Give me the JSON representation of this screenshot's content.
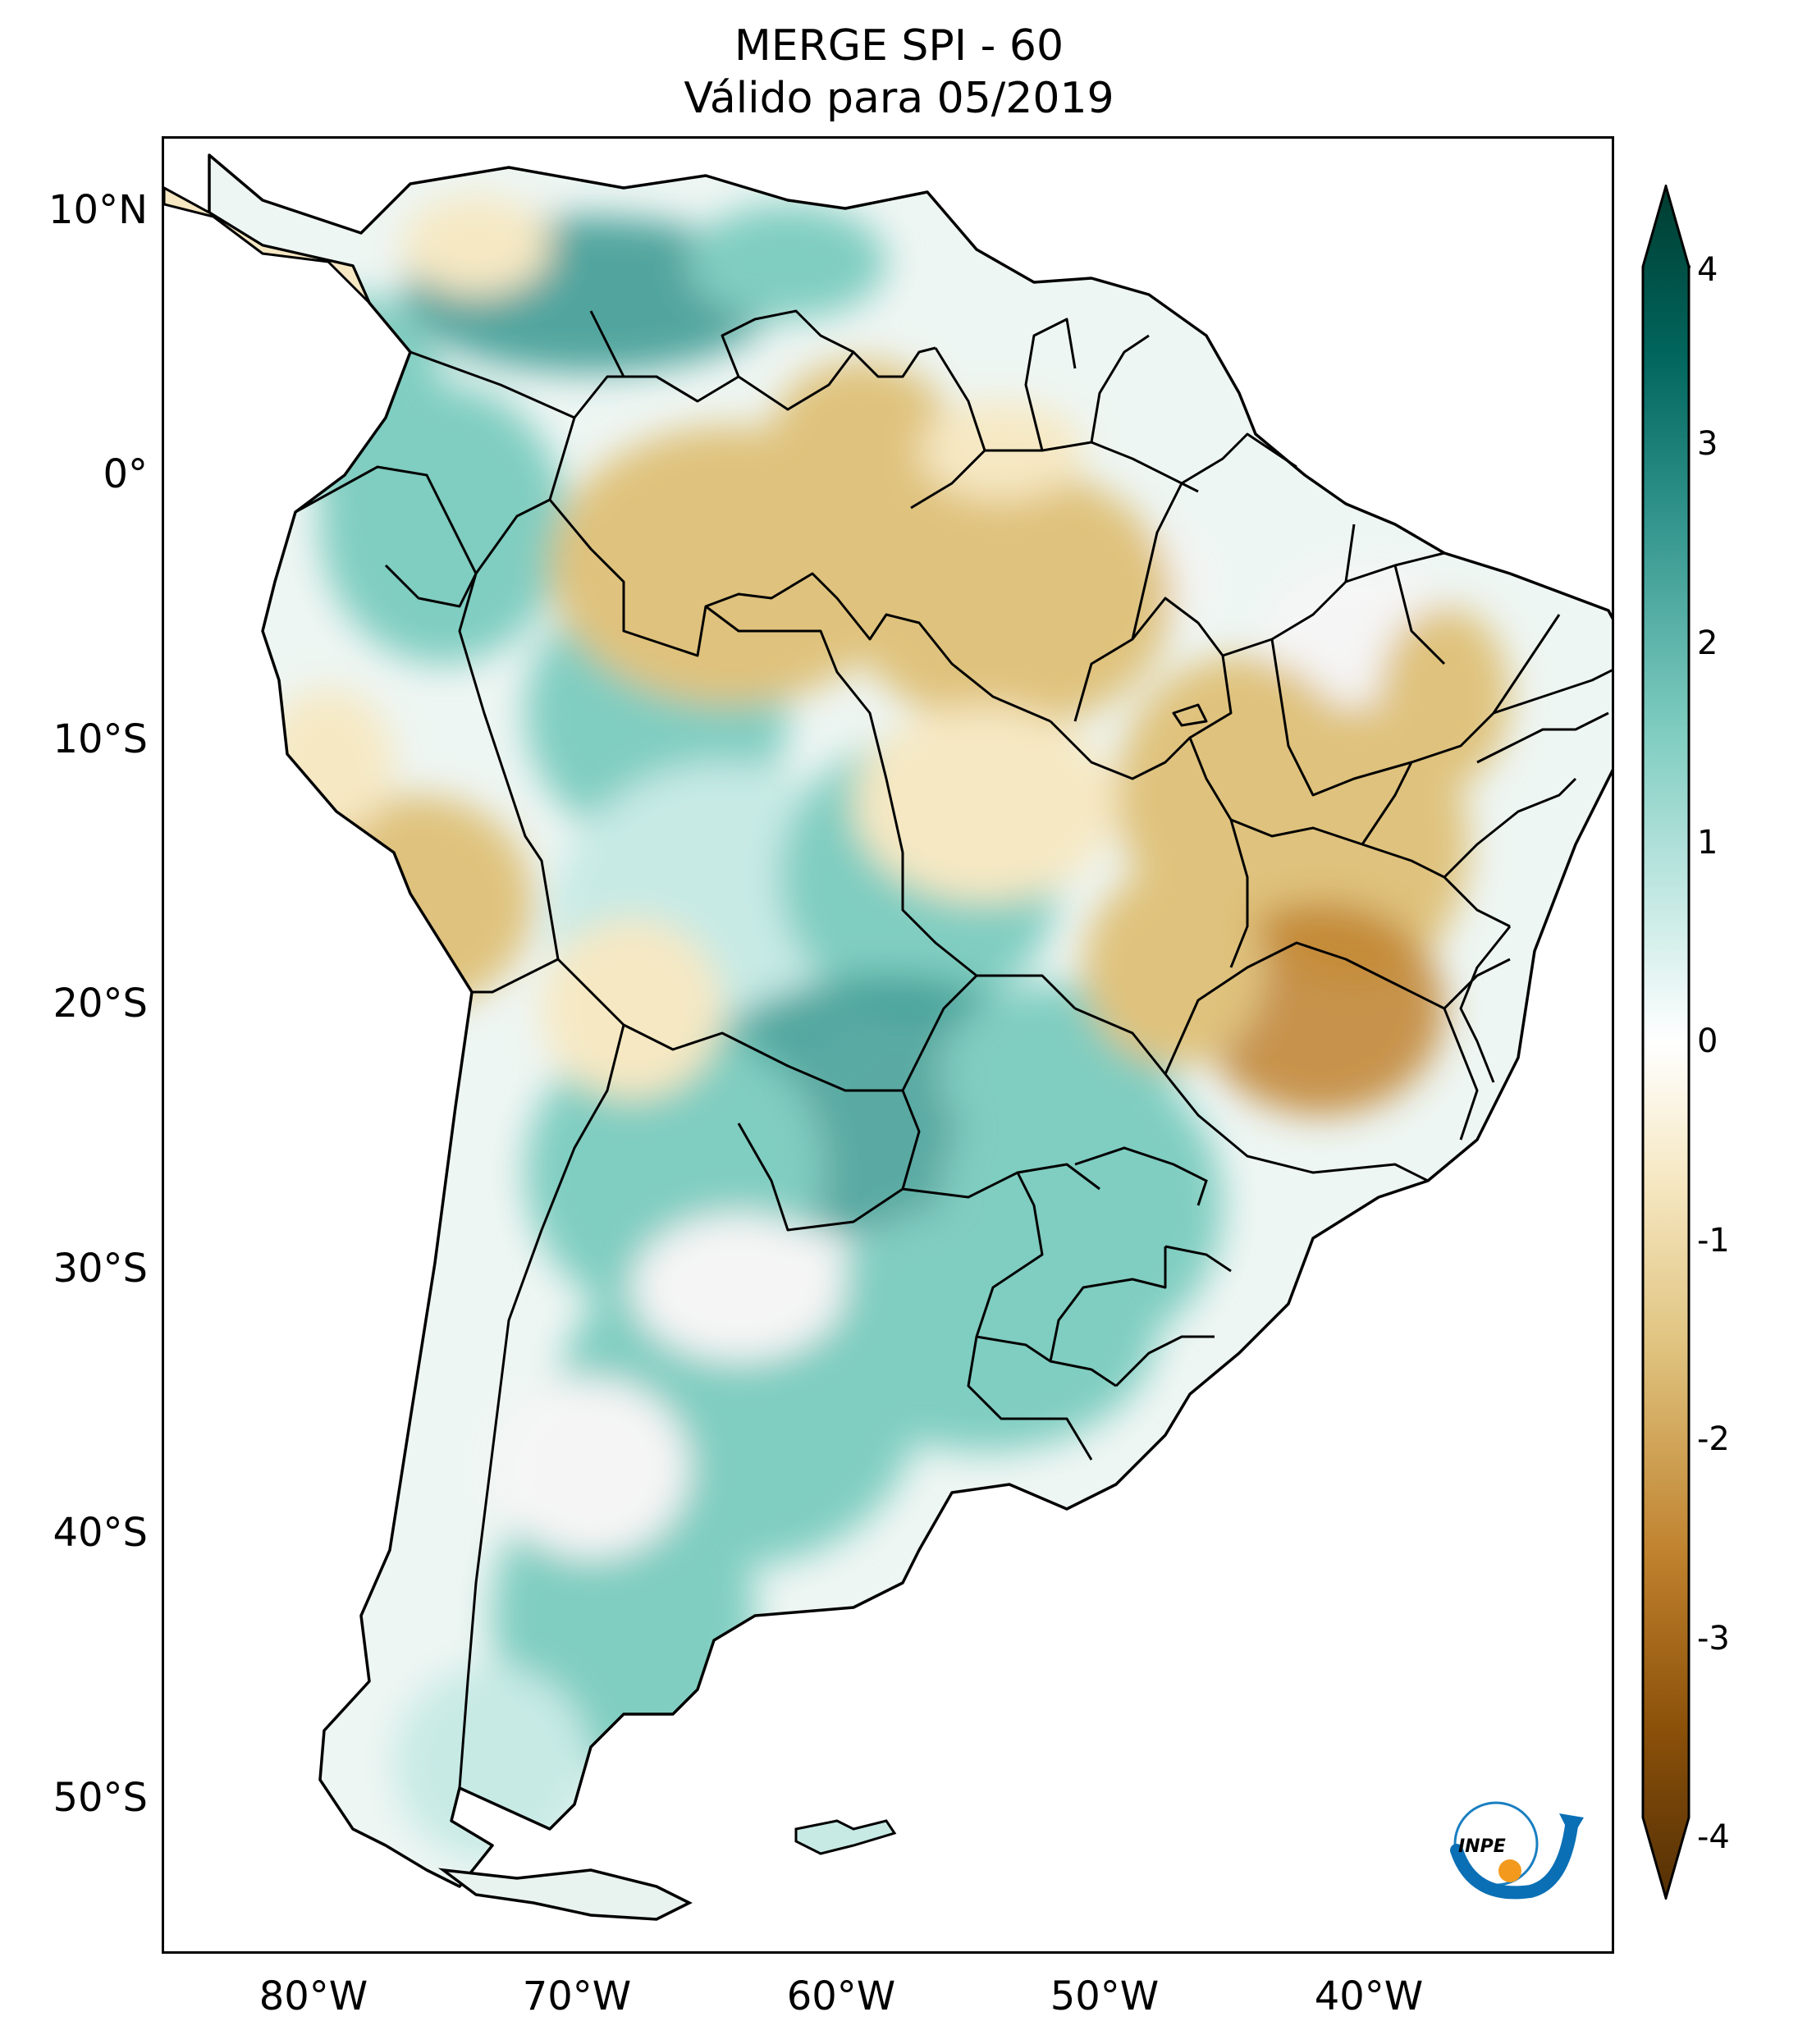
{
  "title": {
    "line1": "MERGE   SPI - 60",
    "line2": "Válido para 05/2019"
  },
  "map": {
    "region": "South America",
    "variable": "SPI - 60",
    "lat_labels": [
      "10°N",
      "0°",
      "10°S",
      "20°S",
      "30°S",
      "40°S",
      "50°S"
    ],
    "lon_labels": [
      "80°W",
      "70°W",
      "60°W",
      "50°W",
      "40°W"
    ],
    "lon_range": [
      -85,
      -30
    ],
    "lat_range": [
      -56,
      13
    ],
    "colors": {
      "ocean": "#ffffff",
      "border": "#000000",
      "wet_strong": "#35978f",
      "wet": "#80cdc1",
      "wet_light": "#c7eae5",
      "neutral": "#f5f5f5",
      "dry_light": "#f6e8c3",
      "dry": "#dfc27d",
      "dry_strong": "#bf812d"
    }
  },
  "colorbar": {
    "ticks": [
      "4",
      "3",
      "2",
      "1",
      "0",
      "-1",
      "-2",
      "-3",
      "-4"
    ],
    "vmin": -4,
    "vmax": 4,
    "colors": [
      "#003c30",
      "#01665e",
      "#35978f",
      "#80cdc1",
      "#c7eae5",
      "#f5f5f5",
      "#f6e8c3",
      "#dfc27d",
      "#bf812d",
      "#8c510a",
      "#543005"
    ]
  },
  "logo": {
    "text": "INPE"
  }
}
